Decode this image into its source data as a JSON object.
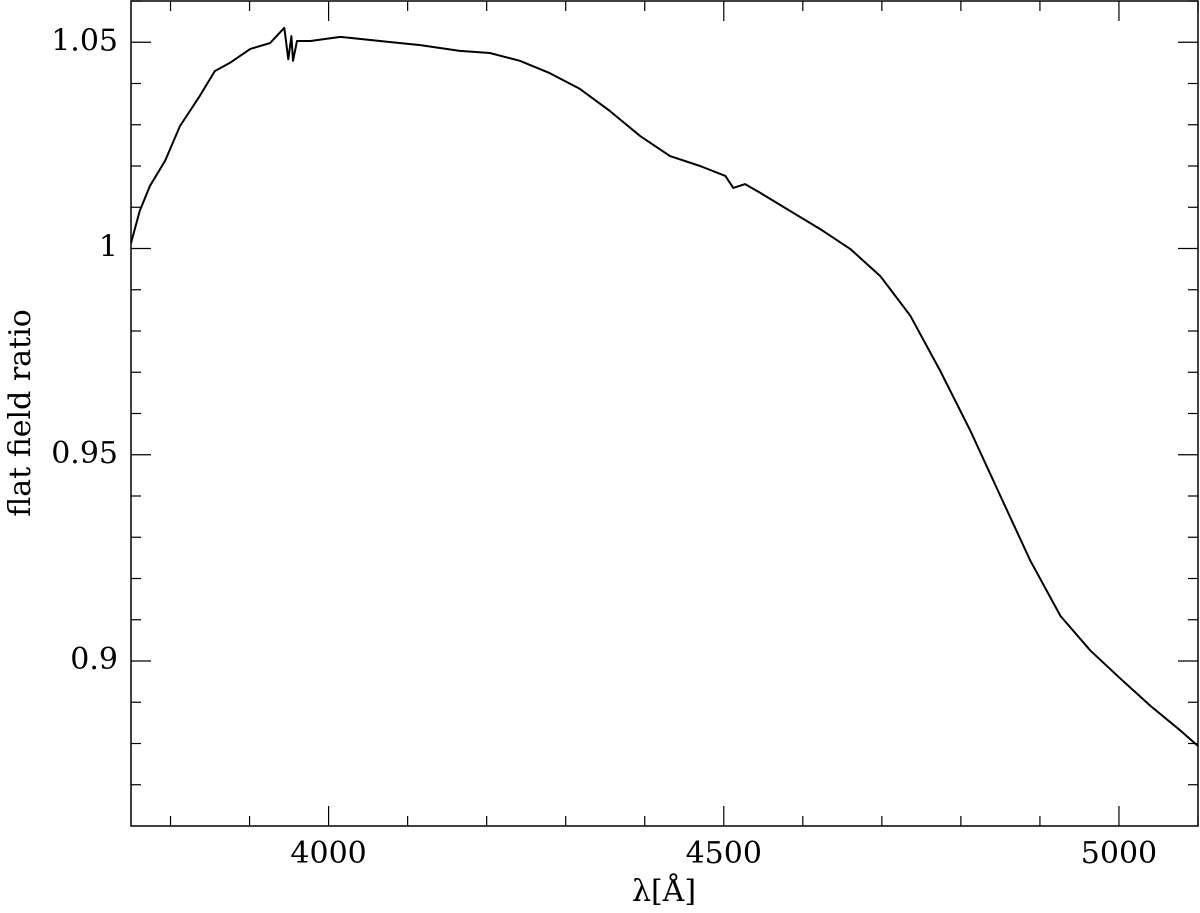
{
  "chart_data": {
    "type": "line",
    "xlabel": "λ[Å]",
    "ylabel": "flat field ratio",
    "xlim": [
      3750,
      5100
    ],
    "ylim": [
      0.86,
      1.06
    ],
    "xticks": [
      4000,
      4500,
      5000
    ],
    "yticks": [
      0.9,
      0.95,
      1,
      1.05
    ],
    "xminorticks": [
      3800,
      3900,
      4100,
      4200,
      4300,
      4400,
      4600,
      4700,
      4800,
      4900,
      5100
    ],
    "yminorticks": [
      0.87,
      0.88,
      0.89,
      0.91,
      0.92,
      0.93,
      0.94,
      0.96,
      0.97,
      0.98,
      0.99,
      1.01,
      1.02,
      1.03,
      1.04,
      1.06
    ],
    "color": "#000000",
    "x": [
      3750,
      3761,
      3774,
      3793,
      3812,
      3837,
      3856,
      3875,
      3901,
      3926,
      3944,
      3949,
      3953,
      3955,
      3960,
      3977,
      4015,
      4065,
      4116,
      4166,
      4204,
      4242,
      4280,
      4318,
      4356,
      4394,
      4432,
      4470,
      4502,
      4512,
      4527,
      4546,
      4584,
      4622,
      4660,
      4698,
      4736,
      4774,
      4812,
      4850,
      4888,
      4926,
      4964,
      5002,
      5040,
      5078,
      5100
    ],
    "values": [
      1.0013,
      1.0091,
      1.0152,
      1.0212,
      1.0297,
      1.037,
      1.043,
      1.045,
      1.0484,
      1.0498,
      1.0535,
      1.0459,
      1.0515,
      1.0455,
      1.0503,
      1.0503,
      1.0513,
      1.0503,
      1.0493,
      1.0479,
      1.0474,
      1.0455,
      1.0425,
      1.0387,
      1.0333,
      1.0273,
      1.0224,
      1.02,
      1.0176,
      1.0147,
      1.0156,
      1.0135,
      1.0091,
      1.0047,
      0.9999,
      0.9933,
      0.9837,
      0.9703,
      0.9558,
      0.94,
      0.9243,
      0.9109,
      0.9025,
      0.8957,
      0.8891,
      0.8831,
      0.8794
    ]
  }
}
